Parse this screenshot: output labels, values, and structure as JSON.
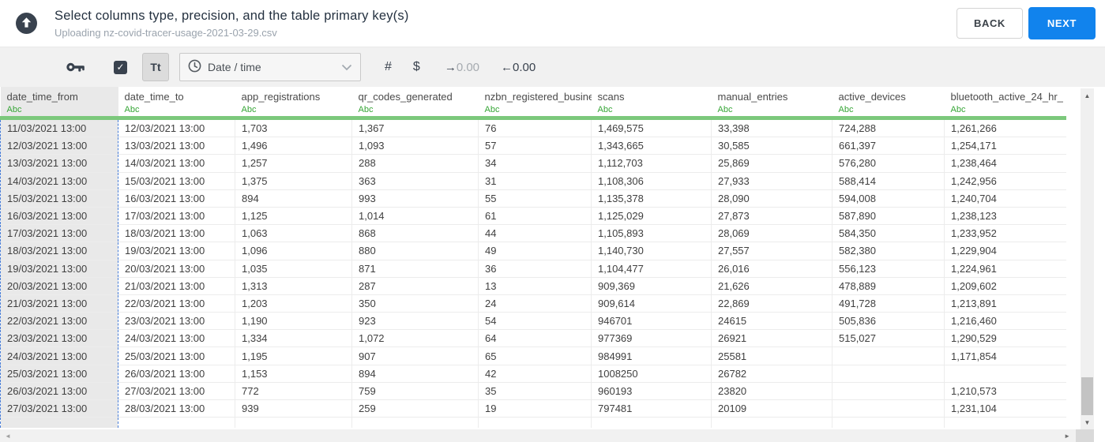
{
  "header": {
    "title": "Select columns type, precision, and the table primary key(s)",
    "subtitle": "Uploading nz-covid-tracer-usage-2021-03-29.csv",
    "back_label": "BACK",
    "next_label": "NEXT"
  },
  "toolbar": {
    "checkbox_checked": true,
    "text_type_label": "Tt",
    "type_selector_value": "Date / time",
    "numeric_label": "#",
    "currency_label": "$",
    "inc_decimal": {
      "arrow": "→",
      "value": "0.00"
    },
    "dec_decimal": {
      "arrow": "←",
      "value": "0.00"
    }
  },
  "icons": {
    "check": "✓",
    "scroll_up": "▲",
    "scroll_down": "▼",
    "scroll_left": "◄",
    "scroll_right": "►"
  },
  "colors": {
    "next_button_blue": "#1183ed",
    "type_badge_green": "#35a535",
    "header_underline_green": "#7cc87c",
    "selected_column_border_blue": "#4a7fd9",
    "selected_column_bg": "#e9e9e9"
  },
  "table": {
    "columns": [
      {
        "name": "date_time_from",
        "type": "Abc",
        "selected": true
      },
      {
        "name": "date_time_to",
        "type": "Abc",
        "selected": false
      },
      {
        "name": "app_registrations",
        "type": "Abc",
        "selected": false
      },
      {
        "name": "qr_codes_generated",
        "type": "Abc",
        "selected": false
      },
      {
        "name": "nzbn_registered_busine",
        "type": "Abc",
        "selected": false
      },
      {
        "name": "scans",
        "type": "Abc",
        "selected": false
      },
      {
        "name": "manual_entries",
        "type": "Abc",
        "selected": false
      },
      {
        "name": "active_devices",
        "type": "Abc",
        "selected": false
      },
      {
        "name": "bluetooth_active_24_hr_",
        "type": "Abc",
        "selected": false
      }
    ],
    "rows": [
      [
        "11/03/2021 13:00",
        "12/03/2021 13:00",
        "1,703",
        "1,367",
        "76",
        "1,469,575",
        "33,398",
        "724,288",
        "1,261,266"
      ],
      [
        "12/03/2021 13:00",
        "13/03/2021 13:00",
        "1,496",
        "1,093",
        "57",
        "1,343,665",
        "30,585",
        "661,397",
        "1,254,171"
      ],
      [
        "13/03/2021 13:00",
        "14/03/2021 13:00",
        "1,257",
        "288",
        "34",
        "1,112,703",
        "25,869",
        "576,280",
        "1,238,464"
      ],
      [
        "14/03/2021 13:00",
        "15/03/2021 13:00",
        "1,375",
        "363",
        "31",
        "1,108,306",
        "27,933",
        "588,414",
        "1,242,956"
      ],
      [
        "15/03/2021 13:00",
        "16/03/2021 13:00",
        "894",
        "993",
        "55",
        "1,135,378",
        "28,090",
        "594,008",
        "1,240,704"
      ],
      [
        "16/03/2021 13:00",
        "17/03/2021 13:00",
        "1,125",
        "1,014",
        "61",
        "1,125,029",
        "27,873",
        "587,890",
        "1,238,123"
      ],
      [
        "17/03/2021 13:00",
        "18/03/2021 13:00",
        "1,063",
        "868",
        "44",
        "1,105,893",
        "28,069",
        "584,350",
        "1,233,952"
      ],
      [
        "18/03/2021 13:00",
        "19/03/2021 13:00",
        "1,096",
        "880",
        "49",
        "1,140,730",
        "27,557",
        "582,380",
        "1,229,904"
      ],
      [
        "19/03/2021 13:00",
        "20/03/2021 13:00",
        "1,035",
        "871",
        "36",
        "1,104,477",
        "26,016",
        "556,123",
        "1,224,961"
      ],
      [
        "20/03/2021 13:00",
        "21/03/2021 13:00",
        "1,313",
        "287",
        "13",
        "909,369",
        "21,626",
        "478,889",
        "1,209,602"
      ],
      [
        "21/03/2021 13:00",
        "22/03/2021 13:00",
        "1,203",
        "350",
        "24",
        "909,614",
        "22,869",
        "491,728",
        "1,213,891"
      ],
      [
        "22/03/2021 13:00",
        "23/03/2021 13:00",
        "1,190",
        "923",
        "54",
        "946701",
        "24615",
        "505,836",
        "1,216,460"
      ],
      [
        "23/03/2021 13:00",
        "24/03/2021 13:00",
        "1,334",
        "1,072",
        "64",
        "977369",
        "26921",
        "515,027",
        "1,290,529"
      ],
      [
        "24/03/2021 13:00",
        "25/03/2021 13:00",
        "1,195",
        "907",
        "65",
        "984991",
        "25581",
        "",
        "1,171,854"
      ],
      [
        "25/03/2021 13:00",
        "26/03/2021 13:00",
        "1,153",
        "894",
        "42",
        "1008250",
        "26782",
        "",
        ""
      ],
      [
        "26/03/2021 13:00",
        "27/03/2021 13:00",
        "772",
        "759",
        "35",
        "960193",
        "23820",
        "",
        "1,210,573"
      ],
      [
        "27/03/2021 13:00",
        "28/03/2021 13:00",
        "939",
        "259",
        "19",
        "797481",
        "20109",
        "",
        "1,231,104"
      ]
    ]
  }
}
